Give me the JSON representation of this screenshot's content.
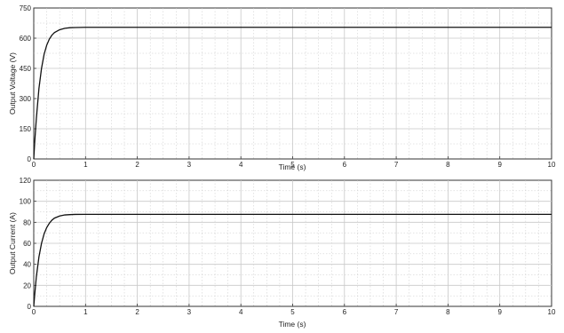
{
  "chart_data": [
    {
      "type": "line",
      "xlabel": "Time (s)",
      "ylabel": "Output Voltage (V)",
      "xlim": [
        0,
        10
      ],
      "ylim": [
        0,
        750
      ],
      "x_ticks": [
        0,
        1,
        2,
        3,
        4,
        5,
        6,
        7,
        8,
        9,
        10
      ],
      "y_ticks": [
        0,
        150,
        300,
        450,
        600,
        750
      ],
      "grid": true,
      "colors": {
        "line": "#111111",
        "grid": "#c8c8c8",
        "axis": "#333333"
      },
      "series": [
        {
          "x": [
            0,
            0.02,
            0.05,
            0.1,
            0.15,
            0.2,
            0.25,
            0.3,
            0.35,
            0.4,
            0.5,
            0.6,
            0.7,
            0.8,
            1,
            1.5,
            2,
            3,
            4,
            5,
            6,
            7,
            8,
            9,
            10
          ],
          "y": [
            0,
            90,
            200,
            350,
            450,
            520,
            565,
            595,
            615,
            628,
            642,
            649,
            652,
            653,
            654,
            654,
            654,
            654,
            654,
            654,
            654,
            654,
            654,
            654,
            654
          ]
        }
      ]
    },
    {
      "type": "line",
      "xlabel": "Time (s)",
      "ylabel": "Output Current (A)",
      "xlim": [
        0,
        10
      ],
      "ylim": [
        0,
        120
      ],
      "x_ticks": [
        0,
        1,
        2,
        3,
        4,
        5,
        6,
        7,
        8,
        9,
        10
      ],
      "y_ticks": [
        0,
        20,
        40,
        60,
        80,
        100,
        120
      ],
      "grid": true,
      "colors": {
        "line": "#111111",
        "grid": "#c8c8c8",
        "axis": "#333333"
      },
      "series": [
        {
          "x": [
            0,
            0.02,
            0.05,
            0.1,
            0.15,
            0.2,
            0.25,
            0.3,
            0.35,
            0.4,
            0.5,
            0.6,
            0.7,
            0.8,
            1,
            1.5,
            2,
            3,
            4,
            5,
            6,
            7,
            8,
            9,
            10
          ],
          "y": [
            0,
            12,
            28,
            47,
            60,
            69,
            75,
            79,
            82,
            84,
            86,
            87,
            87.3,
            87.5,
            87.6,
            87.6,
            87.6,
            87.6,
            87.6,
            87.6,
            87.6,
            87.6,
            87.6,
            87.6,
            87.6
          ]
        }
      ]
    }
  ]
}
